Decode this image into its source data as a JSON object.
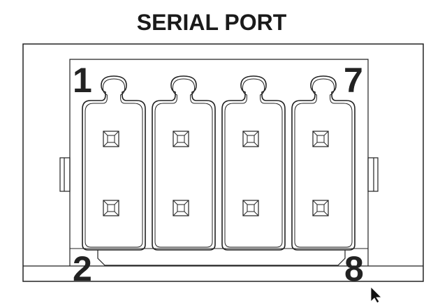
{
  "title": "SERIAL PORT",
  "pin_labels": {
    "top_left": "1",
    "top_right": "7",
    "bottom_left": "2",
    "bottom_right": "8"
  },
  "pin_count": 8,
  "slot_count": 4,
  "colors": {
    "line": "#222222",
    "background": "#ffffff"
  },
  "icons": {
    "cursor": "mouse-pointer-icon"
  }
}
